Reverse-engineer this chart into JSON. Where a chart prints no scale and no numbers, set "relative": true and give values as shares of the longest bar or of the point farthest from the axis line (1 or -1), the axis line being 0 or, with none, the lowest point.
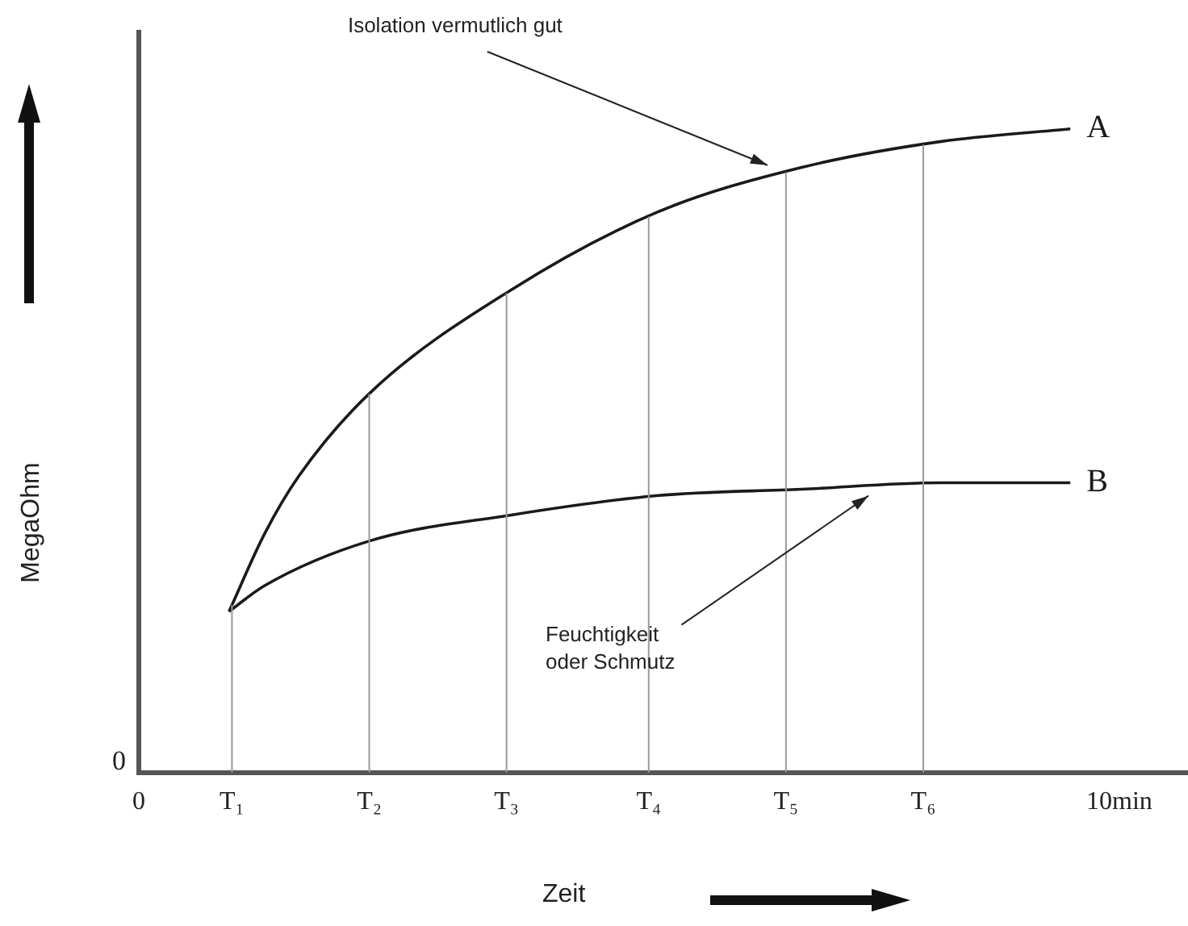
{
  "chart_data": {
    "type": "line",
    "relative": true,
    "xlabel": "Zeit",
    "ylabel": "MegaOhm",
    "legend": false,
    "grid": false,
    "marker": "none",
    "line_style": "solid",
    "xlim": [
      0,
      10.7
    ],
    "xticks": [
      0,
      {
        "value": 0.95,
        "label": "T₁"
      },
      {
        "value": 2.35,
        "label": "T₂"
      },
      {
        "value": 3.75,
        "label": "T₃"
      },
      {
        "value": 5.2,
        "label": "T₄"
      },
      {
        "value": 6.6,
        "label": "T₅"
      },
      {
        "value": 8,
        "label": "T₆"
      },
      {
        "value": 10,
        "label": "10min"
      }
    ],
    "series": [
      {
        "name": "A",
        "color": "#1a1a1a",
        "x": [
          0.92,
          1.28,
          1.63,
          2.36,
          3.8,
          5.28,
          6.76,
          8.17,
          9.5
        ],
        "values": [
          0.25,
          0.37,
          0.46,
          0.59,
          0.75,
          0.87,
          0.94,
          0.98,
          1
        ]
      },
      {
        "name": "B",
        "color": "#1a1a1a",
        "x": [
          0.92,
          1.28,
          2.36,
          3.8,
          5.28,
          6.76,
          8.17,
          9.5
        ],
        "values": [
          0.25,
          0.29,
          0.36,
          0.4,
          0.43,
          0.44,
          0.45,
          0.45
        ]
      }
    ],
    "ref_lines": [
      {
        "axis": "x",
        "value": 0.95,
        "color": "#999999"
      },
      {
        "axis": "x",
        "value": 2.35,
        "color": "#999999"
      },
      {
        "axis": "x",
        "value": 3.75,
        "color": "#999999"
      },
      {
        "axis": "x",
        "value": 5.2,
        "color": "#999999"
      },
      {
        "axis": "x",
        "value": 6.6,
        "color": "#999999"
      },
      {
        "axis": "x",
        "value": 8,
        "color": "#999999"
      }
    ],
    "annotations": [
      "0",
      "Isolation vermutlich gut",
      "Feuchtigkeit\noder Schmutz"
    ]
  }
}
